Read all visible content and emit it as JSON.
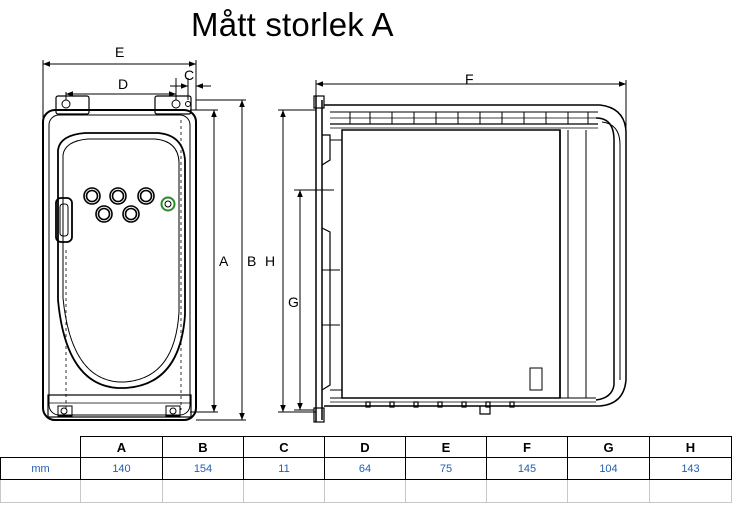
{
  "title": "Mått storlek A",
  "dimension_labels": {
    "A": "A",
    "B": "B",
    "C": "C",
    "D": "D",
    "E": "E",
    "F": "F",
    "G": "G",
    "H": "H"
  },
  "table": {
    "headers": [
      "",
      "A",
      "B",
      "C",
      "D",
      "E",
      "F",
      "G",
      "H"
    ],
    "unit": "mm",
    "values": [
      "140",
      "154",
      "11",
      "64",
      "75",
      "145",
      "104",
      "143"
    ]
  }
}
